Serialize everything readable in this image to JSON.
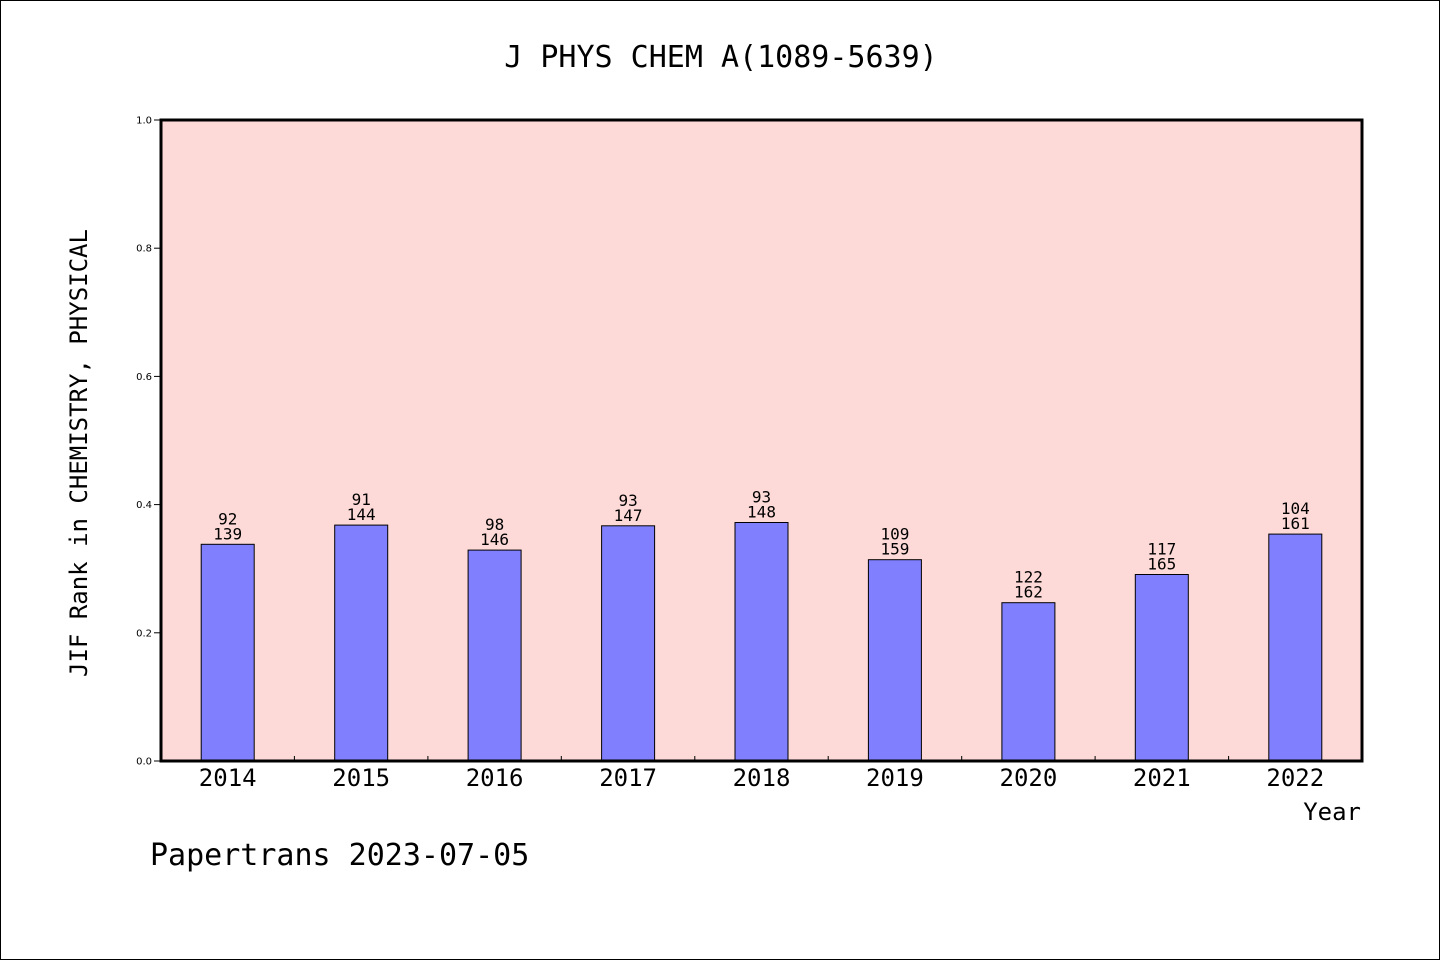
{
  "chart_data": {
    "type": "bar",
    "title": "J PHYS CHEM A(1089-5639)",
    "xlabel": "Year",
    "ylabel": "JIF Rank in CHEMISTRY, PHYSICAL",
    "ylim": [
      0.0,
      1.0
    ],
    "yticks": [
      "0.0",
      "0.2",
      "0.4",
      "0.6",
      "0.8",
      "1.0"
    ],
    "ytick_values": [
      0.0,
      0.2,
      0.4,
      0.6,
      0.8,
      1.0
    ],
    "grid": false,
    "categories": [
      "2014",
      "2015",
      "2016",
      "2017",
      "2018",
      "2019",
      "2020",
      "2021",
      "2022"
    ],
    "values": [
      0.338,
      0.368,
      0.329,
      0.367,
      0.372,
      0.314,
      0.247,
      0.291,
      0.354
    ],
    "rank": [
      "92",
      "91",
      "98",
      "93",
      "93",
      "109",
      "122",
      "117",
      "104"
    ],
    "total": [
      "139",
      "144",
      "146",
      "147",
      "148",
      "159",
      "162",
      "165",
      "161"
    ],
    "colors": {
      "plot_background": "#fddad7",
      "bar_fill": "#8080ff",
      "bar_stroke": "#000000"
    }
  },
  "footer": "Papertrans 2023-07-05"
}
